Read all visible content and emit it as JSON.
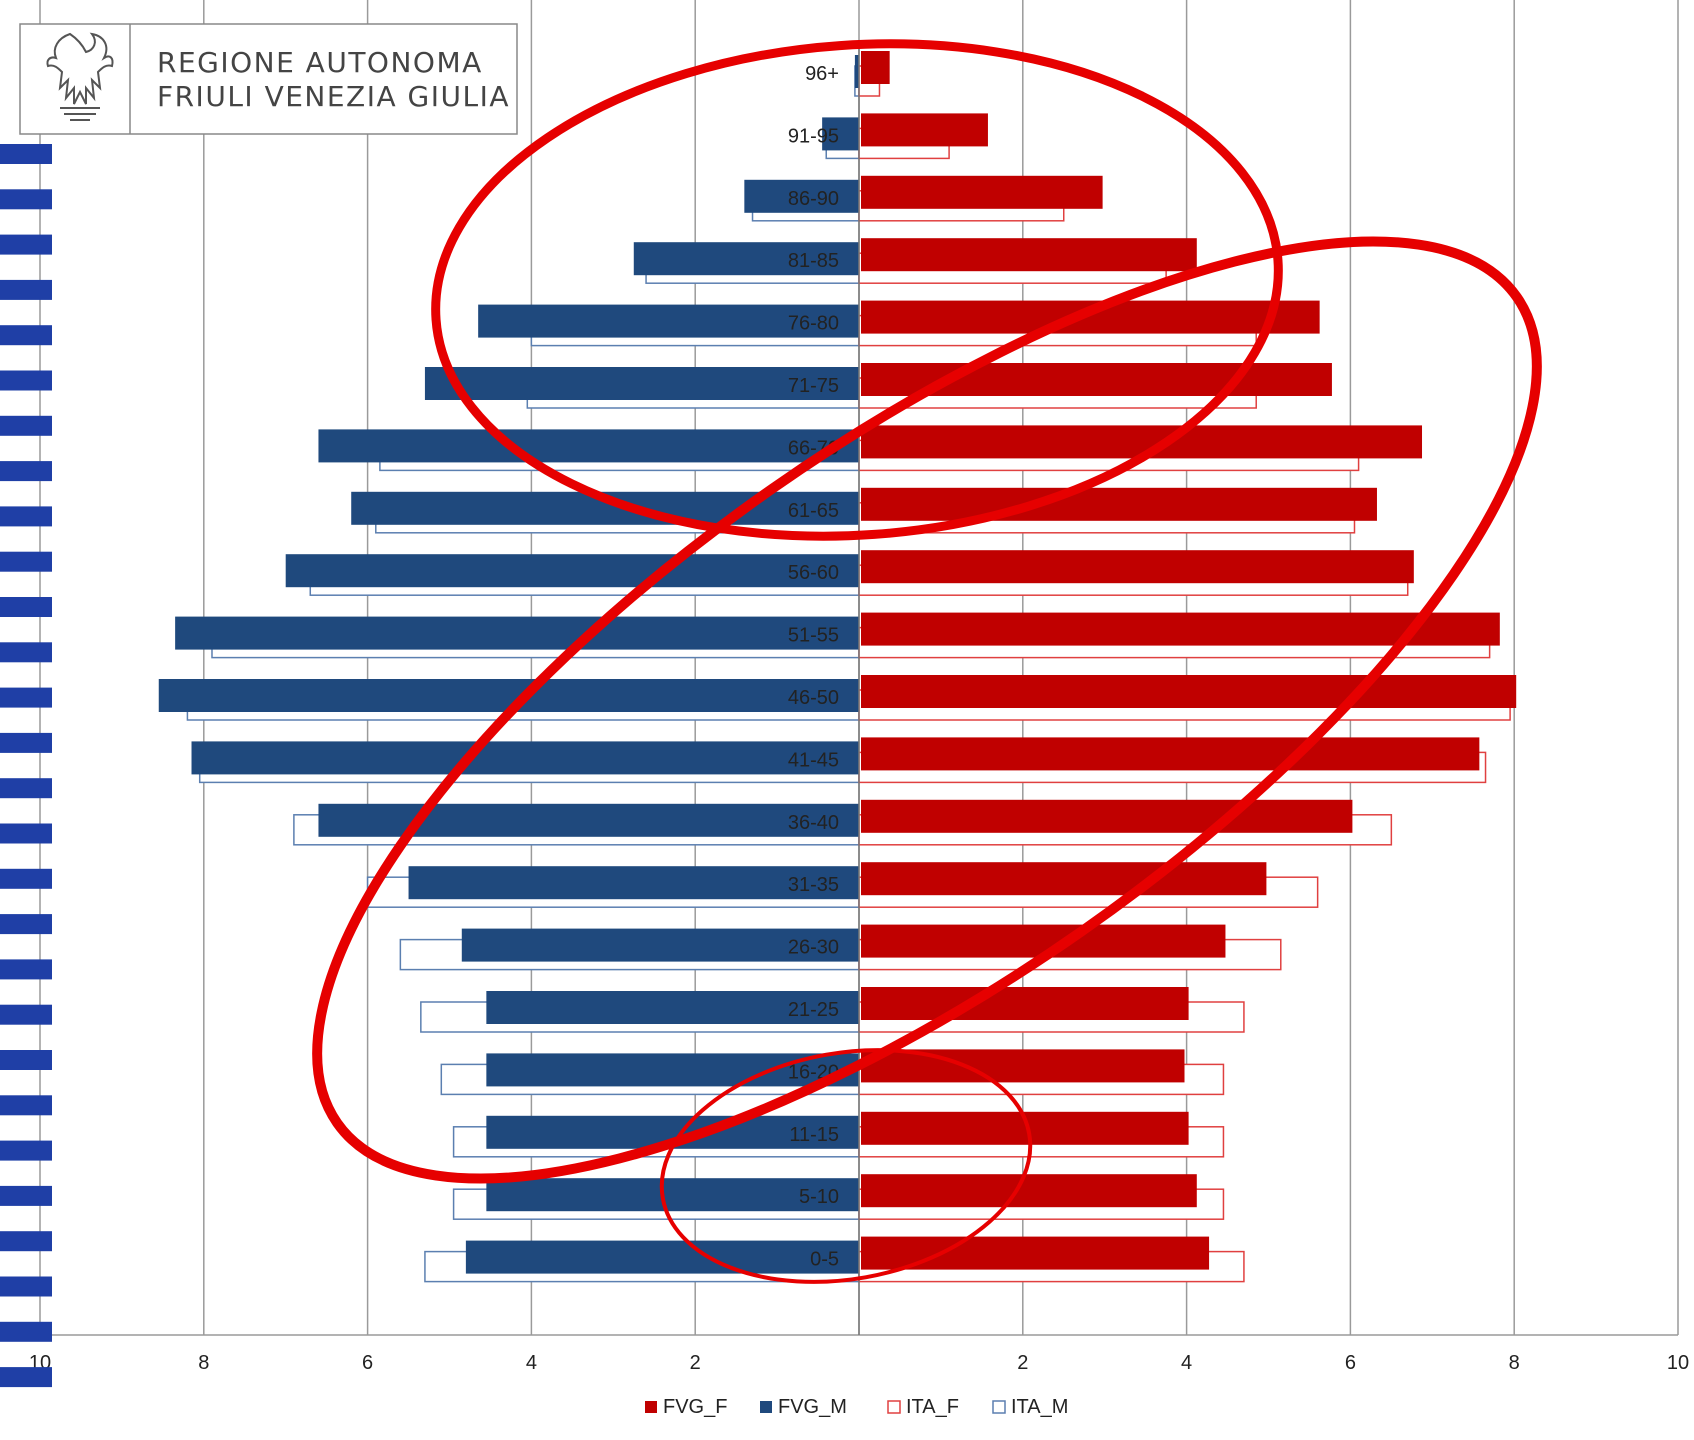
{
  "logo": {
    "line1": "REGIONE AUTONOMA",
    "line2": "FRIULI VENEZIA GIULIA",
    "icon": "eagle-crest-icon"
  },
  "chart_data": {
    "type": "bar",
    "orientation": "horizontal",
    "subtype": "population-pyramid",
    "title": "",
    "xlabel": "",
    "ylabel": "",
    "xlim": [
      -10,
      10
    ],
    "x_ticks": [
      "10",
      "8",
      "6",
      "4",
      "2",
      "",
      "2",
      "4",
      "6",
      "8",
      "10"
    ],
    "grid": true,
    "legend_position": "bottom",
    "categories": [
      "96+",
      "91-95",
      "86-90",
      "81-85",
      "76-80",
      "71-75",
      "66-70",
      "61-65",
      "56-60",
      "51-55",
      "46-50",
      "41-45",
      "36-40",
      "31-35",
      "26-30",
      "21-25",
      "16-20",
      "11-15",
      "5-10",
      "0-5"
    ],
    "series": [
      {
        "name": "FVG_F",
        "side": "right",
        "style": "filled",
        "color": "#c00000",
        "values": [
          0.35,
          1.55,
          2.95,
          4.1,
          5.6,
          5.75,
          6.85,
          6.3,
          6.75,
          7.8,
          8.0,
          7.55,
          6.0,
          4.95,
          4.45,
          4.0,
          3.95,
          4.0,
          4.1,
          4.25
        ]
      },
      {
        "name": "FVG_M",
        "side": "left",
        "style": "filled",
        "color": "#1f497d",
        "values": [
          0.05,
          0.45,
          1.4,
          2.75,
          4.65,
          5.3,
          6.6,
          6.2,
          7.0,
          8.35,
          8.55,
          8.15,
          6.6,
          5.5,
          4.85,
          4.55,
          4.55,
          4.55,
          4.55,
          4.8
        ]
      },
      {
        "name": "ITA_F",
        "side": "right",
        "style": "outline",
        "color": "#e04040",
        "values": [
          0.25,
          1.1,
          2.5,
          3.75,
          4.85,
          4.85,
          6.1,
          6.05,
          6.7,
          7.7,
          7.95,
          7.65,
          6.5,
          5.6,
          5.15,
          4.7,
          4.45,
          4.45,
          4.45,
          4.7
        ]
      },
      {
        "name": "ITA_M",
        "side": "left",
        "style": "outline",
        "color": "#5b7fb0",
        "values": [
          0.05,
          0.4,
          1.3,
          2.6,
          4.0,
          4.05,
          5.85,
          5.9,
          6.7,
          7.9,
          8.2,
          8.05,
          6.9,
          6.0,
          5.6,
          5.35,
          5.1,
          4.95,
          4.95,
          5.3
        ]
      }
    ],
    "annotations": [
      {
        "shape": "ellipse",
        "color": "#e60000",
        "note": "top age groups"
      },
      {
        "shape": "ellipse",
        "color": "#e60000",
        "note": "middle age groups"
      },
      {
        "shape": "ellipse",
        "color": "#e60000",
        "note": "young age groups"
      }
    ]
  }
}
